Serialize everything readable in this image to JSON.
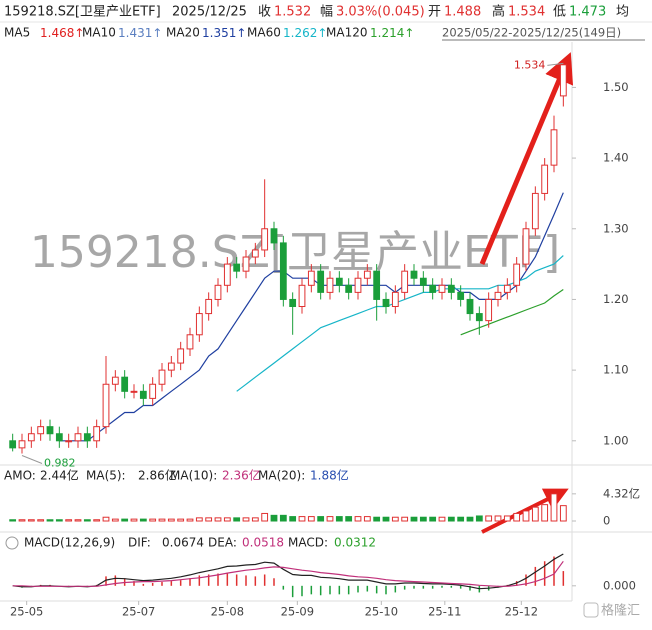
{
  "header": {
    "code": "159218.SZ[卫星产业ETF]",
    "date": "2025/12/25",
    "close_label": "收",
    "close": 1.532,
    "change_label": "幅",
    "change": "3.03%(0.045)",
    "open_label": "开",
    "open": 1.488,
    "high_label": "高",
    "high": 1.534,
    "low_label": "低",
    "low": 1.473,
    "avg_label": "均",
    "range": "2025/05/22-2025/12/25(149日)",
    "logo": "格隆汇"
  },
  "chart_data": [
    {
      "type": "candlestick",
      "ma": [
        {
          "name": "MA5",
          "value": 1.468,
          "arrow": "↑",
          "color": "#e02020"
        },
        {
          "name": "MA10",
          "value": 1.431,
          "arrow": "↑",
          "color": "#5b7fc0"
        },
        {
          "name": "MA20",
          "value": 1.351,
          "arrow": "↑",
          "color": "#1f3fa0"
        },
        {
          "name": "MA60",
          "value": 1.262,
          "arrow": "↑",
          "color": "#16b5c8"
        },
        {
          "name": "MA120",
          "value": 1.214,
          "arrow": "↑",
          "color": "#2ca02c"
        }
      ],
      "open": [
        1.0,
        0.99,
        1.0,
        1.01,
        1.02,
        1.01,
        1.0,
        1.0,
        1.01,
        1.0,
        1.02,
        1.08,
        1.09,
        1.07,
        1.07,
        1.06,
        1.08,
        1.1,
        1.11,
        1.13,
        1.15,
        1.18,
        1.2,
        1.22,
        1.25,
        1.24,
        1.26,
        1.27,
        1.3,
        1.28,
        1.2,
        1.19,
        1.22,
        1.24,
        1.21,
        1.23,
        1.22,
        1.21,
        1.23,
        1.24,
        1.2,
        1.19,
        1.21,
        1.24,
        1.23,
        1.22,
        1.21,
        1.22,
        1.21,
        1.2,
        1.18,
        1.17,
        1.2,
        1.21,
        1.22,
        1.25,
        1.3,
        1.35,
        1.39,
        1.488
      ],
      "high": [
        1.01,
        1.01,
        1.02,
        1.03,
        1.03,
        1.02,
        1.01,
        1.02,
        1.02,
        1.03,
        1.12,
        1.1,
        1.1,
        1.08,
        1.08,
        1.09,
        1.11,
        1.12,
        1.14,
        1.16,
        1.19,
        1.21,
        1.23,
        1.26,
        1.26,
        1.27,
        1.28,
        1.37,
        1.31,
        1.29,
        1.21,
        1.23,
        1.25,
        1.25,
        1.24,
        1.24,
        1.23,
        1.24,
        1.25,
        1.25,
        1.21,
        1.22,
        1.25,
        1.25,
        1.24,
        1.23,
        1.23,
        1.23,
        1.22,
        1.21,
        1.19,
        1.21,
        1.22,
        1.23,
        1.26,
        1.31,
        1.36,
        1.4,
        1.46,
        1.534
      ],
      "low": [
        0.985,
        0.982,
        0.99,
        1.0,
        1.0,
        0.99,
        0.99,
        0.99,
        0.99,
        0.99,
        1.01,
        1.07,
        1.06,
        1.06,
        1.05,
        1.05,
        1.07,
        1.09,
        1.1,
        1.12,
        1.14,
        1.17,
        1.19,
        1.21,
        1.23,
        1.23,
        1.25,
        1.26,
        1.27,
        1.19,
        1.15,
        1.18,
        1.21,
        1.2,
        1.2,
        1.21,
        1.2,
        1.2,
        1.22,
        1.17,
        1.18,
        1.18,
        1.2,
        1.22,
        1.21,
        1.2,
        1.2,
        1.2,
        1.19,
        1.17,
        1.15,
        1.16,
        1.19,
        1.2,
        1.21,
        1.24,
        1.29,
        1.34,
        1.38,
        1.473
      ],
      "close": [
        0.99,
        1.0,
        1.01,
        1.02,
        1.01,
        1.0,
        1.0,
        1.01,
        1.0,
        1.02,
        1.08,
        1.09,
        1.07,
        1.07,
        1.06,
        1.08,
        1.1,
        1.11,
        1.13,
        1.15,
        1.18,
        1.2,
        1.22,
        1.25,
        1.24,
        1.26,
        1.27,
        1.3,
        1.28,
        1.2,
        1.19,
        1.22,
        1.24,
        1.21,
        1.23,
        1.22,
        1.21,
        1.23,
        1.24,
        1.2,
        1.19,
        1.21,
        1.24,
        1.23,
        1.22,
        1.21,
        1.22,
        1.21,
        1.2,
        1.18,
        1.17,
        1.2,
        1.21,
        1.22,
        1.25,
        1.3,
        1.35,
        1.39,
        1.44,
        1.532
      ],
      "series": [
        {
          "name": "MA20",
          "color": "#1f3fa0",
          "values": [
            null,
            null,
            null,
            null,
            null,
            1.0,
            1.0,
            1.0,
            1.0,
            1.01,
            1.02,
            1.03,
            1.04,
            1.04,
            1.05,
            1.05,
            1.06,
            1.07,
            1.08,
            1.09,
            1.1,
            1.12,
            1.13,
            1.15,
            1.17,
            1.19,
            1.21,
            1.23,
            1.24,
            1.24,
            1.23,
            1.23,
            1.23,
            1.22,
            1.22,
            1.22,
            1.22,
            1.22,
            1.22,
            1.22,
            1.22,
            1.21,
            1.22,
            1.22,
            1.22,
            1.22,
            1.22,
            1.22,
            1.21,
            1.21,
            1.2,
            1.2,
            1.2,
            1.21,
            1.22,
            1.24,
            1.26,
            1.29,
            1.32,
            1.351
          ]
        },
        {
          "name": "MA60",
          "color": "#16b5c8",
          "values": [
            null,
            null,
            null,
            null,
            null,
            null,
            null,
            null,
            null,
            null,
            null,
            null,
            null,
            null,
            null,
            null,
            null,
            null,
            null,
            null,
            null,
            null,
            null,
            null,
            1.07,
            1.08,
            1.09,
            1.1,
            1.11,
            1.12,
            1.13,
            1.14,
            1.15,
            1.16,
            1.165,
            1.17,
            1.175,
            1.18,
            1.185,
            1.19,
            1.19,
            1.195,
            1.2,
            1.205,
            1.21,
            1.21,
            1.215,
            1.215,
            1.215,
            1.215,
            1.215,
            1.215,
            1.22,
            1.22,
            1.225,
            1.23,
            1.24,
            1.245,
            1.25,
            1.262
          ]
        },
        {
          "name": "MA120",
          "color": "#2ca02c",
          "values": [
            null,
            null,
            null,
            null,
            null,
            null,
            null,
            null,
            null,
            null,
            null,
            null,
            null,
            null,
            null,
            null,
            null,
            null,
            null,
            null,
            null,
            null,
            null,
            null,
            null,
            null,
            null,
            null,
            null,
            null,
            null,
            null,
            null,
            null,
            null,
            null,
            null,
            null,
            null,
            null,
            null,
            null,
            null,
            null,
            null,
            null,
            null,
            null,
            1.15,
            1.155,
            1.16,
            1.165,
            1.17,
            1.175,
            1.18,
            1.185,
            1.19,
            1.195,
            1.205,
            1.214
          ]
        }
      ],
      "annotations": [
        {
          "value": 1.534,
          "at": "high"
        },
        {
          "value": 0.982,
          "at": "low"
        }
      ],
      "ylim": [
        0.97,
        1.56
      ],
      "yticks": [
        {
          "value": 1,
          "label": "1.00"
        },
        {
          "value": 1.1,
          "label": "1.10"
        },
        {
          "value": 1.2,
          "label": "1.20"
        },
        {
          "value": 1.3,
          "label": "1.30"
        },
        {
          "value": 1.4,
          "label": "1.40"
        },
        {
          "value": 1.5,
          "label": "1.50"
        }
      ],
      "up_color": "#e03030",
      "down_color": "#1a9e3a"
    },
    {
      "type": "bar",
      "legend": [
        {
          "name": "AMO:",
          "value": "2.44亿",
          "color": "#222"
        },
        {
          "name": "MA(5):",
          "value": "2.86亿",
          "color": "#222"
        },
        {
          "name": "MA(10):",
          "value": "2.36亿",
          "color": "#c0307a"
        },
        {
          "name": "MA(20):",
          "value": "1.88亿",
          "color": "#2a4fb0"
        }
      ],
      "values": [
        0.2,
        0.2,
        0.2,
        0.2,
        0.2,
        0.2,
        0.2,
        0.2,
        0.2,
        0.2,
        0.6,
        0.3,
        0.3,
        0.3,
        0.3,
        0.3,
        0.3,
        0.3,
        0.3,
        0.3,
        0.5,
        0.5,
        0.5,
        0.5,
        0.5,
        0.5,
        0.5,
        1.2,
        0.9,
        0.9,
        0.7,
        0.7,
        0.7,
        0.7,
        0.7,
        0.7,
        0.7,
        0.7,
        0.7,
        0.6,
        0.6,
        0.6,
        0.6,
        0.6,
        0.6,
        0.6,
        0.6,
        0.6,
        0.6,
        0.6,
        0.8,
        0.8,
        0.8,
        0.8,
        1.2,
        1.6,
        2.2,
        2.6,
        4.32,
        2.44
      ],
      "ylim": [
        0,
        6.2
      ],
      "yticks": [
        0,
        {
          "value": 4.32,
          "label": "4.32亿"
        }
      ]
    },
    {
      "type": "macd",
      "title": "MACD(12,26,9)",
      "series": [
        {
          "name": "DIF:",
          "label_value": 0.0674,
          "color": "#222",
          "values": [
            0,
            -0.002,
            -0.002,
            0,
            0,
            -0.001,
            -0.002,
            -0.001,
            -0.002,
            0,
            0.012,
            0.016,
            0.015,
            0.013,
            0.011,
            0.012,
            0.014,
            0.016,
            0.019,
            0.023,
            0.028,
            0.032,
            0.036,
            0.041,
            0.042,
            0.044,
            0.045,
            0.05,
            0.048,
            0.035,
            0.024,
            0.022,
            0.022,
            0.018,
            0.017,
            0.015,
            0.012,
            0.012,
            0.012,
            0.008,
            0.004,
            0.004,
            0.006,
            0.006,
            0.005,
            0.004,
            0.004,
            0.003,
            0.001,
            -0.002,
            -0.006,
            -0.005,
            -0.003,
            0,
            0.006,
            0.016,
            0.029,
            0.042,
            0.056,
            0.0674
          ]
        },
        {
          "name": "DEA:",
          "label_value": 0.0518,
          "color": "#c0307a",
          "values": [
            0,
            0,
            -0.001,
            -0.001,
            -0.001,
            -0.001,
            -0.001,
            -0.001,
            -0.001,
            -0.001,
            0.002,
            0.005,
            0.007,
            0.008,
            0.009,
            0.009,
            0.01,
            0.011,
            0.013,
            0.015,
            0.017,
            0.02,
            0.023,
            0.027,
            0.03,
            0.033,
            0.035,
            0.038,
            0.04,
            0.039,
            0.036,
            0.033,
            0.031,
            0.028,
            0.026,
            0.024,
            0.021,
            0.019,
            0.018,
            0.016,
            0.013,
            0.011,
            0.01,
            0.009,
            0.008,
            0.007,
            0.006,
            0.005,
            0.004,
            0.003,
            0.001,
            0,
            -0.001,
            -0.001,
            0.001,
            0.004,
            0.009,
            0.016,
            0.025,
            0.0518
          ]
        }
      ],
      "hist_name": "MACD:",
      "hist_label_value": 0.0312,
      "hist_color": "#2ca02c",
      "values": [
        0,
        -0.004,
        -0.002,
        0.002,
        0.002,
        0,
        -0.002,
        0,
        -0.002,
        0.002,
        0.02,
        0.022,
        0.016,
        0.01,
        0.004,
        0.006,
        0.008,
        0.01,
        0.012,
        0.016,
        0.022,
        0.024,
        0.026,
        0.028,
        0.024,
        0.022,
        0.02,
        0.024,
        0.016,
        -0.008,
        -0.024,
        -0.022,
        -0.018,
        -0.02,
        -0.018,
        -0.018,
        -0.018,
        -0.014,
        -0.012,
        -0.016,
        -0.018,
        -0.014,
        -0.008,
        -0.006,
        -0.006,
        -0.006,
        -0.004,
        -0.004,
        -0.006,
        -0.01,
        -0.014,
        -0.01,
        -0.004,
        0.002,
        0.01,
        0.024,
        0.04,
        0.052,
        0.062,
        0.0312
      ],
      "ylim": [
        -0.03,
        0.08
      ],
      "yticks": [
        {
          "value": 0,
          "label": "0.000"
        }
      ],
      "xticks": [
        {
          "value": 1.5,
          "label": "25-05"
        },
        {
          "value": 13.5,
          "label": "25-07"
        },
        {
          "value": 23,
          "label": "25-08"
        },
        {
          "value": 30.5,
          "label": "25-09"
        },
        {
          "value": 39.5,
          "label": "25-10"
        },
        {
          "value": 46.3,
          "label": "25-11"
        },
        {
          "value": 54.5,
          "label": "25-12"
        }
      ]
    }
  ]
}
